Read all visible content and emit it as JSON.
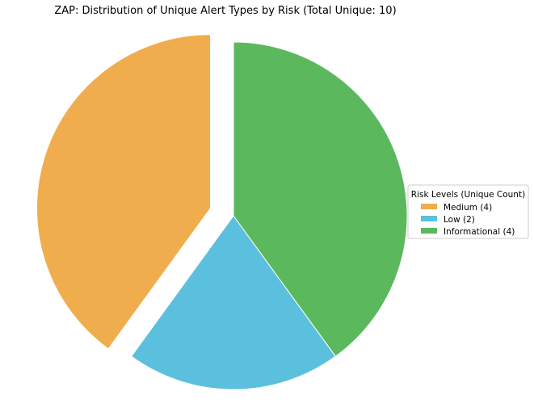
{
  "chart_data": {
    "type": "pie",
    "title": "ZAP: Distribution of Unique Alert Types by Risk (Total Unique: 10)",
    "categories": [
      "Medium",
      "Low",
      "Informational"
    ],
    "values": [
      4,
      2,
      4
    ],
    "colors": [
      "#f0ad4e",
      "#5bc0de",
      "#5cb85c"
    ],
    "exploded": [
      true,
      false,
      false
    ],
    "start_angle_deg": 90,
    "direction": "counterclockwise",
    "legend": {
      "title": "Risk Levels (Unique Count)",
      "placement": "center-right",
      "entries": [
        "Medium (4)",
        "Low (2)",
        "Informational (4)"
      ]
    }
  }
}
